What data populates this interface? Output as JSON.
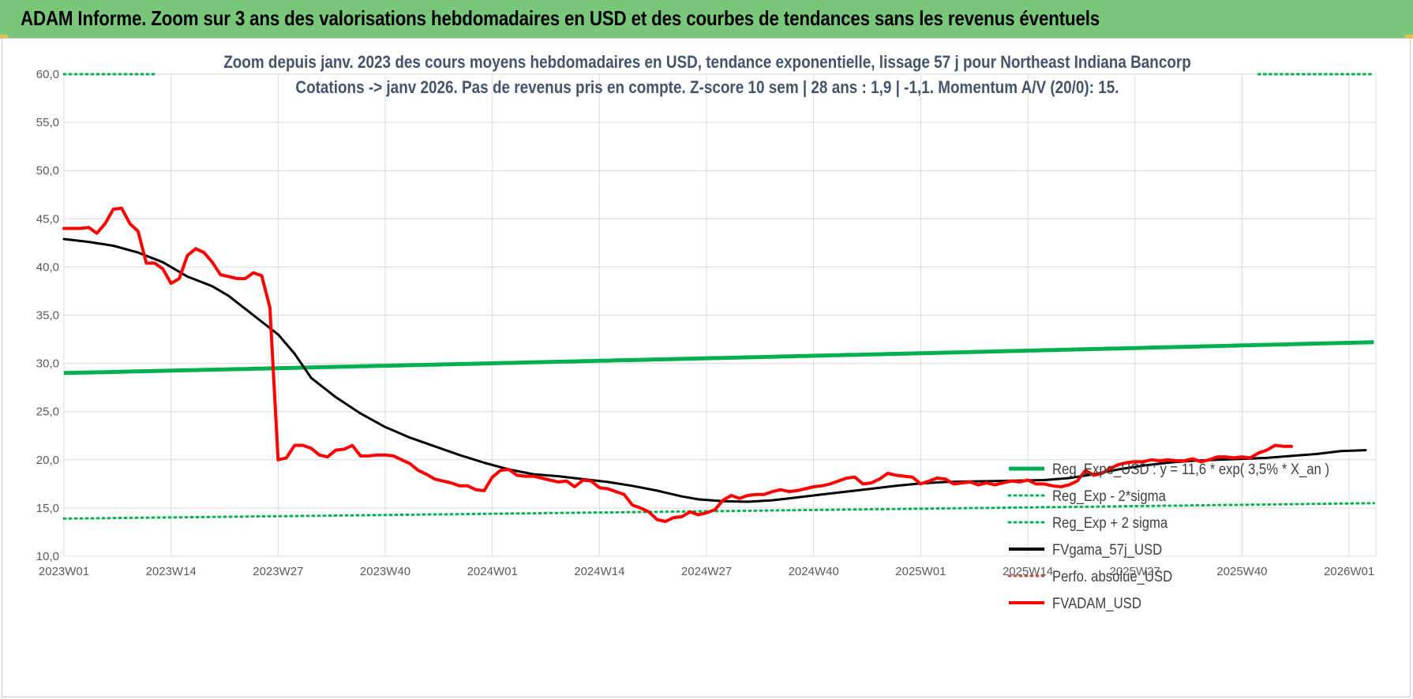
{
  "header": {
    "title": "ADAM Informe. Zoom sur 3 ans des valorisations hebdomadaires en USD et des courbes de tendances sans les revenus éventuels"
  },
  "colors": {
    "banner": "#78c77a",
    "reg_expo": "#00b050",
    "fvadam": "#ff0000",
    "fvgamma": "#000000",
    "grid": "#d9d9d9",
    "title_text": "#44546a"
  },
  "chart_data": {
    "type": "line",
    "title_line1": "Zoom depuis janv. 2023 des cours moyens hebdomadaires en USD, tendance exponentielle, lissage 57 j pour Northeast Indiana Bancorp",
    "title_line2": "Cotations -> janv 2026. Pas de revenus pris en compte. Z-score 10 sem | 28 ans : 1,9 | -1,1. Momentum A/V (20/0): 15.",
    "ylim": [
      10,
      60
    ],
    "y_ticks": [
      "10,0",
      "15,0",
      "20,0",
      "25,0",
      "30,0",
      "35,0",
      "40,0",
      "45,0",
      "50,0",
      "55,0",
      "60,0"
    ],
    "x_ticks": [
      "2023W01",
      "2023W14",
      "2023W27",
      "2023W40",
      "2024W01",
      "2024W14",
      "2024W27",
      "2024W40",
      "2025W01",
      "2025W14",
      "2025W27",
      "2025W40",
      "2026W01"
    ],
    "x_range_weeks": [
      0,
      159
    ],
    "grid": true,
    "legend_position": "right",
    "legend": [
      {
        "name": "Reg_Expo_USD : y = 11,6 * exp( 3,5% *  X_an )",
        "style": "solid",
        "color": "#00b050"
      },
      {
        "name": "Reg_Exp - 2*sigma",
        "style": "dotted",
        "color": "#00b050"
      },
      {
        "name": "Reg_Exp + 2 sigma",
        "style": "dotted",
        "color": "#00b050"
      },
      {
        "name": "FVgama_57j_USD",
        "style": "solid",
        "color": "#000000"
      },
      {
        "name": "Perfo. absolue_USD",
        "style": "dotted",
        "color": "#c0504d"
      },
      {
        "name": "FVADAM_USD",
        "style": "solid",
        "color": "#ff0000"
      }
    ],
    "series": [
      {
        "key": "reg_expo",
        "points": [
          [
            0,
            29.0
          ],
          [
            159,
            32.2
          ]
        ]
      },
      {
        "key": "reg_minus",
        "points": [
          [
            0,
            13.9
          ],
          [
            159,
            15.5
          ]
        ]
      },
      {
        "key": "reg_plus_left",
        "points": [
          [
            0,
            60.0
          ],
          [
            11,
            60.0
          ]
        ]
      },
      {
        "key": "reg_plus_right",
        "points": [
          [
            145,
            60.0
          ],
          [
            159,
            60.0
          ]
        ]
      },
      {
        "key": "fvgamma",
        "points": [
          [
            0,
            42.9
          ],
          [
            3,
            42.6
          ],
          [
            6,
            42.2
          ],
          [
            9,
            41.5
          ],
          [
            12,
            40.5
          ],
          [
            15,
            39.0
          ],
          [
            18,
            38.0
          ],
          [
            20,
            37.0
          ],
          [
            23,
            35.0
          ],
          [
            26,
            33.0
          ],
          [
            28,
            31.0
          ],
          [
            30,
            28.5
          ],
          [
            33,
            26.5
          ],
          [
            36,
            24.8
          ],
          [
            39,
            23.4
          ],
          [
            42,
            22.3
          ],
          [
            45,
            21.4
          ],
          [
            48,
            20.5
          ],
          [
            51,
            19.7
          ],
          [
            54,
            19.0
          ],
          [
            57,
            18.5
          ],
          [
            60,
            18.3
          ],
          [
            63,
            18.0
          ],
          [
            66,
            17.7
          ],
          [
            69,
            17.3
          ],
          [
            72,
            16.8
          ],
          [
            75,
            16.2
          ],
          [
            77,
            15.9
          ],
          [
            80,
            15.7
          ],
          [
            83,
            15.65
          ],
          [
            86,
            15.8
          ],
          [
            89,
            16.1
          ],
          [
            92,
            16.4
          ],
          [
            95,
            16.7
          ],
          [
            98,
            17.0
          ],
          [
            101,
            17.3
          ],
          [
            104,
            17.55
          ],
          [
            107,
            17.7
          ],
          [
            110,
            17.75
          ],
          [
            113,
            17.8
          ],
          [
            116,
            17.85
          ],
          [
            119,
            17.9
          ],
          [
            122,
            18.1
          ],
          [
            125,
            18.5
          ],
          [
            128,
            19.0
          ],
          [
            131,
            19.4
          ],
          [
            134,
            19.7
          ],
          [
            137,
            19.9
          ],
          [
            140,
            20.0
          ],
          [
            143,
            20.1
          ],
          [
            146,
            20.2
          ],
          [
            149,
            20.4
          ],
          [
            152,
            20.6
          ],
          [
            155,
            20.9
          ],
          [
            158,
            21.0
          ]
        ]
      },
      {
        "key": "fvadam",
        "points": [
          [
            0,
            44.0
          ],
          [
            2,
            44.0
          ],
          [
            3,
            44.1
          ],
          [
            4,
            43.5
          ],
          [
            5,
            44.5
          ],
          [
            6,
            46.0
          ],
          [
            7,
            46.1
          ],
          [
            8,
            44.5
          ],
          [
            9,
            43.7
          ],
          [
            10,
            40.4
          ],
          [
            11,
            40.4
          ],
          [
            12,
            39.8
          ],
          [
            13,
            38.3
          ],
          [
            14,
            38.8
          ],
          [
            15,
            41.2
          ],
          [
            16,
            41.9
          ],
          [
            17,
            41.5
          ],
          [
            18,
            40.5
          ],
          [
            19,
            39.2
          ],
          [
            20,
            39.0
          ],
          [
            21,
            38.8
          ],
          [
            22,
            38.8
          ],
          [
            23,
            39.4
          ],
          [
            24,
            39.1
          ],
          [
            25,
            35.8
          ],
          [
            26,
            20.0
          ],
          [
            27,
            20.2
          ],
          [
            28,
            21.5
          ],
          [
            29,
            21.5
          ],
          [
            30,
            21.2
          ],
          [
            31,
            20.5
          ],
          [
            32,
            20.3
          ],
          [
            33,
            21.0
          ],
          [
            34,
            21.1
          ],
          [
            35,
            21.5
          ],
          [
            36,
            20.4
          ],
          [
            37,
            20.4
          ],
          [
            38,
            20.5
          ],
          [
            39,
            20.5
          ],
          [
            40,
            20.4
          ],
          [
            41,
            20.0
          ],
          [
            42,
            19.6
          ],
          [
            43,
            18.9
          ],
          [
            44,
            18.5
          ],
          [
            45,
            18.0
          ],
          [
            46,
            17.8
          ],
          [
            47,
            17.6
          ],
          [
            48,
            17.3
          ],
          [
            49,
            17.3
          ],
          [
            50,
            16.9
          ],
          [
            51,
            16.8
          ],
          [
            52,
            18.2
          ],
          [
            53,
            18.9
          ],
          [
            54,
            19.0
          ],
          [
            55,
            18.4
          ],
          [
            56,
            18.3
          ],
          [
            57,
            18.3
          ],
          [
            58,
            18.1
          ],
          [
            59,
            17.9
          ],
          [
            60,
            17.7
          ],
          [
            61,
            17.8
          ],
          [
            62,
            17.2
          ],
          [
            63,
            17.9
          ],
          [
            64,
            17.8
          ],
          [
            65,
            17.1
          ],
          [
            66,
            17.0
          ],
          [
            67,
            16.7
          ],
          [
            68,
            16.4
          ],
          [
            69,
            15.3
          ],
          [
            70,
            15.0
          ],
          [
            71,
            14.6
          ],
          [
            72,
            13.8
          ],
          [
            73,
            13.6
          ],
          [
            74,
            14.0
          ],
          [
            75,
            14.1
          ],
          [
            76,
            14.6
          ],
          [
            77,
            14.3
          ],
          [
            78,
            14.5
          ],
          [
            79,
            14.8
          ],
          [
            80,
            15.8
          ],
          [
            81,
            16.3
          ],
          [
            82,
            16.0
          ],
          [
            83,
            16.3
          ],
          [
            84,
            16.4
          ],
          [
            85,
            16.4
          ],
          [
            86,
            16.7
          ],
          [
            87,
            16.9
          ],
          [
            88,
            16.7
          ],
          [
            89,
            16.8
          ],
          [
            90,
            17.0
          ],
          [
            91,
            17.2
          ],
          [
            92,
            17.3
          ],
          [
            93,
            17.5
          ],
          [
            94,
            17.8
          ],
          [
            95,
            18.1
          ],
          [
            96,
            18.2
          ],
          [
            97,
            17.5
          ],
          [
            98,
            17.6
          ],
          [
            99,
            18.0
          ],
          [
            100,
            18.6
          ],
          [
            101,
            18.4
          ],
          [
            102,
            18.3
          ],
          [
            103,
            18.2
          ],
          [
            104,
            17.5
          ],
          [
            105,
            17.8
          ],
          [
            106,
            18.1
          ],
          [
            107,
            18.0
          ],
          [
            108,
            17.5
          ],
          [
            109,
            17.6
          ],
          [
            110,
            17.7
          ],
          [
            111,
            17.4
          ],
          [
            112,
            17.6
          ],
          [
            113,
            17.4
          ],
          [
            114,
            17.6
          ],
          [
            115,
            17.8
          ],
          [
            116,
            17.7
          ],
          [
            117,
            17.9
          ],
          [
            118,
            17.5
          ],
          [
            119,
            17.5
          ],
          [
            120,
            17.3
          ],
          [
            121,
            17.2
          ],
          [
            122,
            17.4
          ],
          [
            123,
            17.8
          ],
          [
            124,
            18.9
          ],
          [
            125,
            18.4
          ],
          [
            126,
            18.6
          ],
          [
            127,
            19.1
          ],
          [
            128,
            19.5
          ],
          [
            129,
            19.7
          ],
          [
            130,
            19.8
          ],
          [
            131,
            19.8
          ],
          [
            132,
            20.0
          ],
          [
            133,
            19.9
          ],
          [
            134,
            20.0
          ],
          [
            135,
            19.9
          ],
          [
            136,
            19.9
          ],
          [
            137,
            20.1
          ],
          [
            138,
            19.8
          ],
          [
            139,
            20.0
          ],
          [
            140,
            20.3
          ],
          [
            141,
            20.3
          ],
          [
            142,
            20.2
          ],
          [
            143,
            20.3
          ],
          [
            144,
            20.2
          ],
          [
            145,
            20.7
          ],
          [
            146,
            21.0
          ],
          [
            147,
            21.5
          ],
          [
            148,
            21.4
          ],
          [
            149,
            21.4
          ]
        ]
      }
    ]
  }
}
